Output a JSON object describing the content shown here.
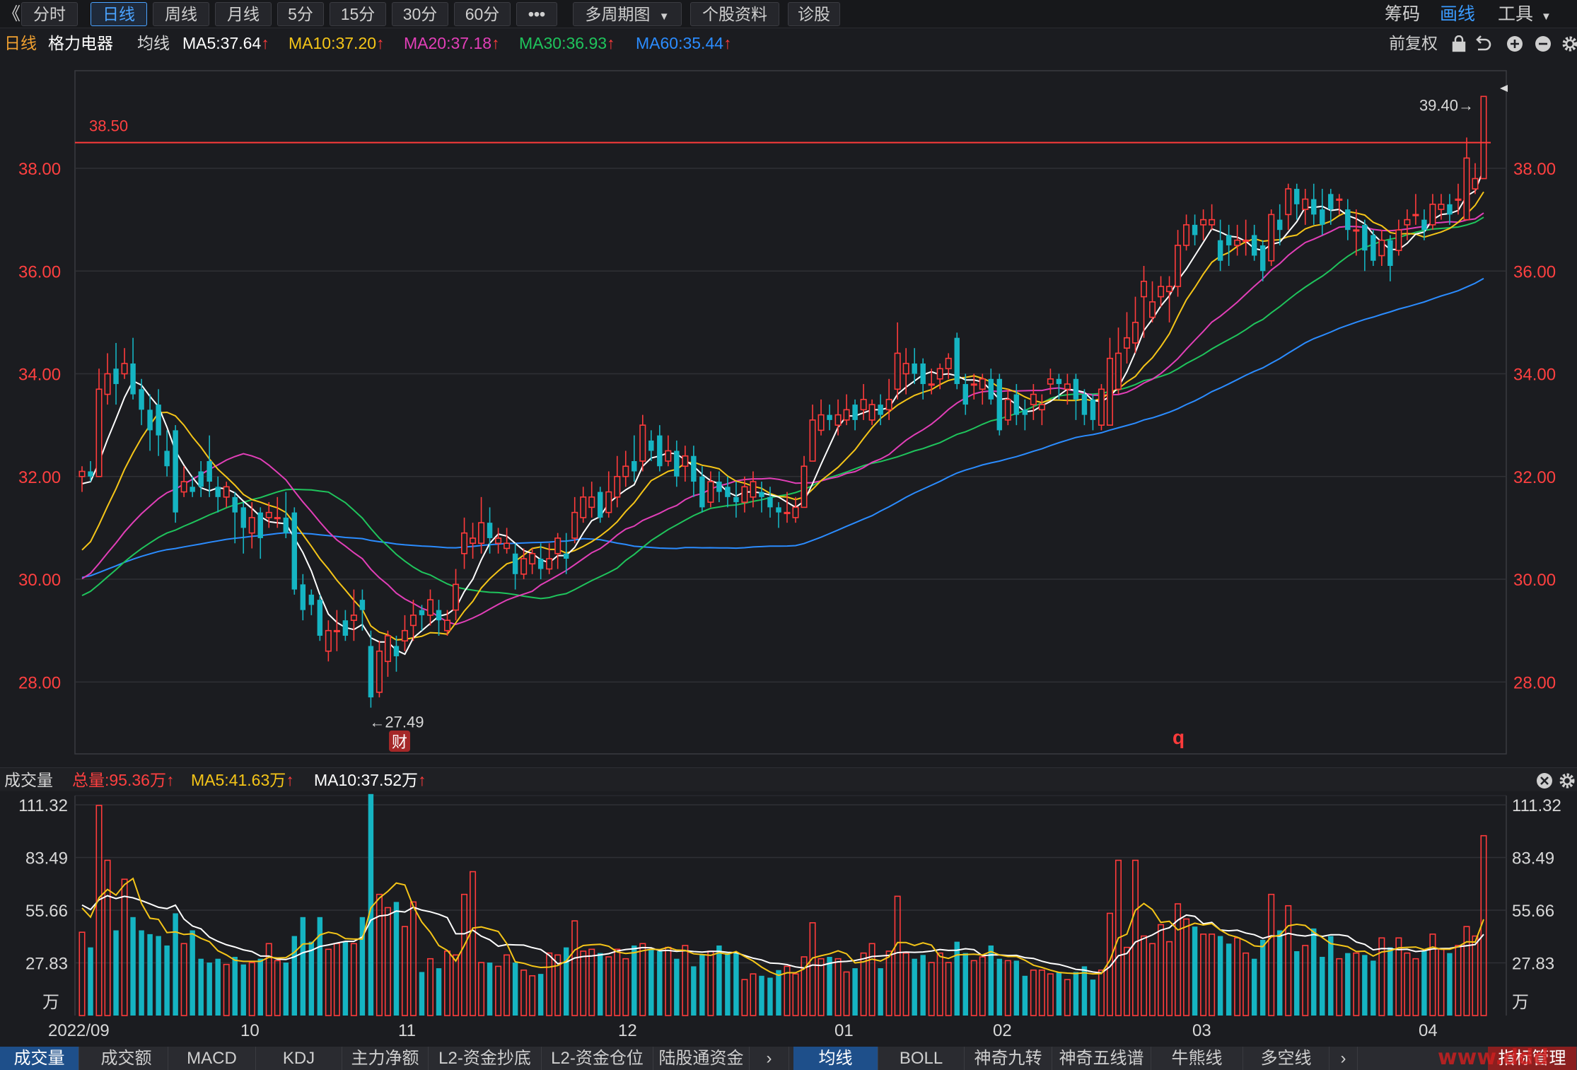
{
  "toolbar": {
    "back": "《",
    "periods": [
      "分时",
      "日线",
      "周线",
      "月线",
      "5分",
      "15分",
      "30分",
      "60分"
    ],
    "active_period": "日线",
    "more": "•••",
    "multi_period": "多周期图",
    "dropdown_caret": "▼",
    "stock_info": "个股资料",
    "diagnose": "诊股",
    "chips": "筹码",
    "draw": "画线",
    "tools": "工具",
    "tools_caret": "▼"
  },
  "ma_row": {
    "period": "日线",
    "stock_name": "格力电器",
    "indicator": "均线",
    "ma5": "MA5:37.64",
    "ma10": "MA10:37.20",
    "ma20": "MA20:37.18",
    "ma30": "MA30:36.93",
    "ma60": "MA60:35.44",
    "arrow": "↑",
    "adjust": "前复权",
    "colors": {
      "ma5": "#ffffff",
      "ma10": "#f5c518",
      "ma20": "#e23fb8",
      "ma30": "#1fc45c",
      "ma60": "#2b8cff"
    }
  },
  "annotations": {
    "hline_value": "38.50",
    "high_label": "39.40→",
    "low_label": "←27.49",
    "fin_badge": "财",
    "q_marker": "q"
  },
  "volume_header": {
    "title": "成交量",
    "total": "总量:95.36万",
    "ma5": "MA5:41.63万",
    "ma10": "MA10:37.52万",
    "arrow": "↑"
  },
  "date_axis": [
    "2022/09",
    "10",
    "11",
    "12",
    "01",
    "02",
    "03",
    "04"
  ],
  "bottom_tabs": [
    "成交量",
    "成交额",
    "MACD",
    "KDJ",
    "主力净额",
    "L2-资金抄底",
    "L2-资金仓位",
    "陆股通资金"
  ],
  "bottom_tabs2": [
    "均线",
    "BOLL",
    "神奇九转",
    "神奇五线谱",
    "牛熊线",
    "多空线"
  ],
  "manage": "指标管理",
  "watermark": "www.ddd",
  "chart_data": {
    "type": "candlestick",
    "price_ticks": [
      "38.00",
      "36.00",
      "34.00",
      "32.00",
      "30.00",
      "28.00"
    ],
    "price_range": [
      26.6,
      39.9
    ],
    "volume_ticks": [
      "111.32",
      "83.49",
      "55.66",
      "27.83"
    ],
    "volume_unit": "万",
    "volume_range": [
      0,
      111.32
    ],
    "date_labels": [
      "2022/09",
      "10",
      "11",
      "12",
      "01",
      "02",
      "03",
      "04"
    ],
    "candles": [
      [
        32.0,
        32.1,
        31.7,
        32.2,
        44
      ],
      [
        32.1,
        32.0,
        31.9,
        32.3,
        36
      ],
      [
        32.0,
        33.7,
        32.0,
        34.1,
        111
      ],
      [
        33.6,
        34.0,
        33.4,
        34.4,
        82
      ],
      [
        34.1,
        33.8,
        33.4,
        34.6,
        45
      ],
      [
        34.0,
        34.2,
        33.9,
        34.5,
        72
      ],
      [
        34.2,
        33.6,
        33.5,
        34.7,
        52
      ],
      [
        33.7,
        33.3,
        33.0,
        33.9,
        45
      ],
      [
        33.3,
        32.9,
        32.5,
        33.6,
        43
      ],
      [
        33.4,
        32.8,
        32.4,
        33.7,
        42
      ],
      [
        32.5,
        32.2,
        32.0,
        32.9,
        37
      ],
      [
        32.9,
        31.3,
        31.1,
        33.0,
        54
      ],
      [
        31.7,
        31.9,
        31.6,
        32.2,
        38
      ],
      [
        31.8,
        31.7,
        31.6,
        32.0,
        45
      ],
      [
        32.1,
        31.8,
        31.6,
        32.3,
        30
      ],
      [
        32.3,
        31.9,
        31.6,
        32.8,
        28
      ],
      [
        31.8,
        31.6,
        31.3,
        32.0,
        30
      ],
      [
        31.6,
        31.8,
        31.4,
        31.9,
        27
      ],
      [
        31.6,
        31.3,
        30.7,
        31.7,
        31
      ],
      [
        31.4,
        31.0,
        30.5,
        31.5,
        27
      ],
      [
        30.9,
        31.2,
        30.6,
        31.5,
        28
      ],
      [
        31.3,
        30.8,
        30.4,
        31.4,
        30
      ],
      [
        31.2,
        31.3,
        31.0,
        31.5,
        38
      ],
      [
        31.2,
        31.2,
        31.0,
        31.6,
        29
      ],
      [
        31.2,
        30.9,
        30.8,
        31.7,
        28
      ],
      [
        31.3,
        29.8,
        29.7,
        31.4,
        42
      ],
      [
        29.9,
        29.4,
        29.2,
        30.1,
        52
      ],
      [
        29.7,
        29.5,
        29.3,
        29.8,
        39
      ],
      [
        29.6,
        28.9,
        28.8,
        29.7,
        52
      ],
      [
        28.6,
        29.0,
        28.4,
        29.2,
        35
      ],
      [
        29.0,
        29.0,
        28.6,
        29.4,
        38
      ],
      [
        29.2,
        28.9,
        28.8,
        29.4,
        39
      ],
      [
        29.2,
        29.3,
        28.8,
        29.8,
        38
      ],
      [
        29.6,
        29.4,
        29.0,
        29.8,
        52
      ],
      [
        28.7,
        27.7,
        27.5,
        29.0,
        117
      ],
      [
        27.8,
        28.6,
        27.7,
        28.8,
        64
      ],
      [
        28.4,
        28.9,
        28.1,
        29.0,
        57
      ],
      [
        28.7,
        28.5,
        28.2,
        28.9,
        60
      ],
      [
        28.8,
        29.0,
        28.6,
        29.3,
        47
      ],
      [
        29.1,
        29.3,
        28.8,
        29.6,
        60
      ],
      [
        29.4,
        29.3,
        29.0,
        29.5,
        23
      ],
      [
        29.3,
        29.6,
        29.1,
        29.8,
        30
      ],
      [
        29.4,
        29.2,
        28.9,
        29.6,
        25
      ],
      [
        29.0,
        29.2,
        28.9,
        29.4,
        34
      ],
      [
        29.4,
        29.9,
        29.2,
        30.2,
        32
      ],
      [
        30.5,
        30.9,
        30.2,
        31.2,
        64
      ],
      [
        30.7,
        30.8,
        30.4,
        31.1,
        76
      ],
      [
        30.7,
        31.1,
        30.5,
        31.6,
        28
      ],
      [
        31.1,
        30.8,
        30.5,
        31.4,
        28
      ],
      [
        30.7,
        30.8,
        30.5,
        31.0,
        26
      ],
      [
        30.6,
        30.7,
        30.5,
        31.0,
        32
      ],
      [
        30.5,
        30.1,
        29.8,
        30.7,
        28
      ],
      [
        30.1,
        30.4,
        30.0,
        30.6,
        24
      ],
      [
        30.3,
        30.5,
        30.1,
        30.6,
        21
      ],
      [
        30.4,
        30.2,
        30.0,
        30.7,
        22
      ],
      [
        30.2,
        30.4,
        30.1,
        30.7,
        33
      ],
      [
        30.5,
        30.8,
        30.2,
        30.9,
        32
      ],
      [
        30.5,
        30.4,
        30.1,
        30.9,
        36
      ],
      [
        30.8,
        31.3,
        30.7,
        31.6,
        50
      ],
      [
        31.2,
        31.6,
        31.1,
        31.8,
        34
      ],
      [
        31.4,
        31.6,
        31.2,
        31.9,
        35
      ],
      [
        31.7,
        31.2,
        31.1,
        31.8,
        33
      ],
      [
        31.3,
        31.7,
        31.2,
        32.1,
        31
      ],
      [
        31.6,
        32.0,
        31.4,
        32.4,
        35
      ],
      [
        32.0,
        32.2,
        31.8,
        32.5,
        30
      ],
      [
        32.3,
        32.1,
        31.9,
        32.8,
        37
      ],
      [
        32.3,
        33.0,
        32.1,
        33.2,
        38
      ],
      [
        32.7,
        32.5,
        32.3,
        32.9,
        35
      ],
      [
        32.8,
        32.2,
        32.1,
        33.0,
        34
      ],
      [
        32.3,
        32.5,
        32.2,
        32.8,
        36
      ],
      [
        32.5,
        32.0,
        31.8,
        32.7,
        30
      ],
      [
        32.2,
        32.4,
        31.9,
        32.6,
        37
      ],
      [
        32.4,
        31.9,
        31.6,
        32.6,
        26
      ],
      [
        32.0,
        31.4,
        31.3,
        32.2,
        32
      ],
      [
        31.5,
        31.9,
        31.4,
        32.1,
        34
      ],
      [
        31.9,
        31.7,
        31.5,
        32.1,
        37
      ],
      [
        31.8,
        31.6,
        31.4,
        32.0,
        33
      ],
      [
        31.6,
        31.5,
        31.2,
        31.9,
        33
      ],
      [
        31.5,
        31.8,
        31.3,
        32.0,
        19
      ],
      [
        31.6,
        31.9,
        31.4,
        32.1,
        22
      ],
      [
        31.7,
        31.6,
        31.3,
        31.9,
        21
      ],
      [
        31.6,
        31.4,
        31.2,
        31.8,
        20
      ],
      [
        31.4,
        31.3,
        31.0,
        31.5,
        24
      ],
      [
        31.3,
        31.3,
        31.1,
        31.7,
        26
      ],
      [
        31.2,
        31.4,
        31.1,
        31.6,
        22
      ],
      [
        31.4,
        32.2,
        31.4,
        32.4,
        31
      ],
      [
        32.3,
        33.1,
        32.3,
        33.4,
        49
      ],
      [
        32.9,
        33.2,
        32.8,
        33.5,
        30
      ],
      [
        33.2,
        33.1,
        32.9,
        33.4,
        31
      ],
      [
        33.0,
        33.2,
        32.8,
        33.5,
        30
      ],
      [
        33.1,
        33.3,
        33.0,
        33.6,
        23
      ],
      [
        33.4,
        33.1,
        32.9,
        33.5,
        25
      ],
      [
        33.3,
        33.5,
        33.1,
        33.8,
        33
      ],
      [
        33.1,
        33.4,
        33.0,
        33.5,
        38
      ],
      [
        33.4,
        33.2,
        33.0,
        33.6,
        25
      ],
      [
        33.3,
        33.5,
        33.1,
        33.9,
        34
      ],
      [
        33.7,
        34.4,
        33.5,
        35.0,
        63
      ],
      [
        34.0,
        34.2,
        33.6,
        34.5,
        33
      ],
      [
        34.2,
        34.0,
        33.8,
        34.5,
        30
      ],
      [
        34.2,
        33.8,
        33.5,
        34.3,
        32
      ],
      [
        33.8,
        33.8,
        33.6,
        34.1,
        28
      ],
      [
        33.9,
        34.1,
        33.7,
        34.2,
        33
      ],
      [
        34.1,
        34.3,
        33.9,
        34.4,
        28
      ],
      [
        34.7,
        33.8,
        33.7,
        34.8,
        39
      ],
      [
        33.8,
        33.4,
        33.2,
        34.0,
        33
      ],
      [
        33.8,
        33.8,
        33.5,
        34.0,
        29
      ],
      [
        33.7,
        33.9,
        33.4,
        34.0,
        31
      ],
      [
        33.9,
        33.5,
        33.4,
        34.1,
        37
      ],
      [
        33.9,
        32.9,
        32.8,
        34.0,
        30
      ],
      [
        33.1,
        33.5,
        33.0,
        33.7,
        29
      ],
      [
        33.6,
        33.2,
        33.0,
        33.8,
        29
      ],
      [
        33.3,
        33.2,
        32.9,
        33.5,
        21
      ],
      [
        33.4,
        33.6,
        33.1,
        33.8,
        24
      ],
      [
        33.3,
        33.4,
        33.0,
        33.6,
        24
      ],
      [
        33.8,
        33.9,
        33.6,
        34.1,
        22
      ],
      [
        33.9,
        33.8,
        33.5,
        34.0,
        23
      ],
      [
        33.7,
        33.8,
        33.4,
        34.0,
        19
      ],
      [
        33.9,
        33.5,
        33.1,
        34.0,
        23
      ],
      [
        33.6,
        33.2,
        33.0,
        33.7,
        26
      ],
      [
        33.5,
        33.1,
        32.9,
        33.6,
        19
      ],
      [
        33.0,
        33.7,
        32.9,
        33.8,
        24
      ],
      [
        33.0,
        34.3,
        33.0,
        34.7,
        54
      ],
      [
        33.7,
        34.4,
        33.6,
        34.9,
        82
      ],
      [
        34.5,
        34.7,
        34.2,
        35.2,
        36
      ],
      [
        34.6,
        35.0,
        34.4,
        35.5,
        82
      ],
      [
        35.5,
        35.8,
        34.7,
        36.1,
        42
      ],
      [
        35.1,
        35.4,
        35.0,
        35.8,
        38
      ],
      [
        35.5,
        35.7,
        35.3,
        35.9,
        48
      ],
      [
        35.6,
        35.7,
        35.0,
        35.9,
        39
      ],
      [
        35.7,
        36.5,
        35.5,
        36.8,
        59
      ],
      [
        36.5,
        36.9,
        36.4,
        37.1,
        51
      ],
      [
        36.9,
        36.7,
        36.5,
        37.1,
        47
      ],
      [
        36.9,
        37.0,
        36.6,
        37.2,
        43
      ],
      [
        36.9,
        37.0,
        36.8,
        37.3,
        43
      ],
      [
        36.6,
        36.2,
        36.0,
        37.0,
        42
      ],
      [
        36.7,
        36.5,
        36.1,
        36.9,
        38
      ],
      [
        36.5,
        36.6,
        36.3,
        36.9,
        41
      ],
      [
        36.6,
        36.6,
        36.3,
        37.0,
        33
      ],
      [
        36.7,
        36.3,
        36.2,
        36.9,
        30
      ],
      [
        36.5,
        36.0,
        35.8,
        36.6,
        40
      ],
      [
        36.2,
        37.1,
        36.1,
        37.2,
        64
      ],
      [
        37.0,
        36.8,
        36.5,
        37.3,
        45
      ],
      [
        37.1,
        37.6,
        36.8,
        37.7,
        58
      ],
      [
        37.6,
        37.3,
        37.0,
        37.7,
        34
      ],
      [
        37.2,
        37.4,
        36.9,
        37.6,
        37
      ],
      [
        37.4,
        37.1,
        36.9,
        37.7,
        46
      ],
      [
        37.2,
        36.9,
        36.7,
        37.6,
        31
      ],
      [
        37.5,
        37.2,
        36.9,
        37.6,
        42
      ],
      [
        37.4,
        37.4,
        37.1,
        37.5,
        30
      ],
      [
        37.2,
        36.8,
        36.6,
        37.4,
        33
      ],
      [
        36.8,
        36.8,
        36.3,
        37.2,
        33
      ],
      [
        36.9,
        36.4,
        36.0,
        37.0,
        32
      ],
      [
        36.7,
        36.2,
        36.1,
        36.8,
        29
      ],
      [
        36.3,
        36.6,
        36.1,
        36.8,
        41
      ],
      [
        36.6,
        36.1,
        35.8,
        36.7,
        36
      ],
      [
        36.4,
        36.8,
        36.3,
        37.0,
        41
      ],
      [
        36.9,
        37.0,
        36.6,
        37.2,
        33
      ],
      [
        37.1,
        37.1,
        36.9,
        37.5,
        30
      ],
      [
        37.0,
        36.8,
        36.6,
        37.2,
        34
      ],
      [
        36.9,
        37.3,
        36.8,
        37.5,
        43
      ],
      [
        37.2,
        37.3,
        37.0,
        37.5,
        35
      ],
      [
        37.3,
        37.1,
        36.9,
        37.5,
        33
      ],
      [
        37.4,
        37.4,
        37.1,
        37.7,
        37
      ],
      [
        37.0,
        38.2,
        37.0,
        38.6,
        47
      ],
      [
        37.6,
        37.8,
        37.5,
        38.1,
        42
      ],
      [
        37.8,
        39.4,
        37.8,
        39.4,
        95
      ]
    ]
  }
}
